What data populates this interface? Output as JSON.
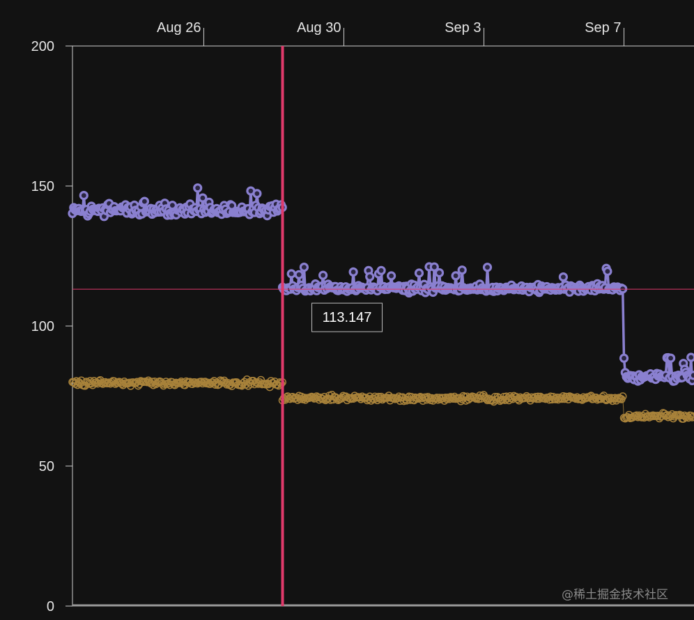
{
  "chart_data": {
    "type": "scatter",
    "title": "",
    "xlabel": "",
    "ylabel": "",
    "ylim": [
      0,
      200
    ],
    "xlim": [
      "2025-08-22T06:00",
      "2025-09-09T00:00"
    ],
    "y_ticks": [
      0,
      50,
      100,
      150,
      200
    ],
    "x_ticks": [
      {
        "label": "Aug 26",
        "date": "2025-08-26"
      },
      {
        "label": "Aug 30",
        "date": "2025-08-30"
      },
      {
        "label": "Sep 3",
        "date": "2025-09-03"
      },
      {
        "label": "Sep 7",
        "date": "2025-09-07"
      }
    ],
    "x_axis_position": "top",
    "grid": false,
    "series": [
      {
        "color": "#8a80d0",
        "style": "line-with-markers",
        "segments": [
          {
            "start": "2025-08-22T06:00",
            "end": "2025-08-28T06:00",
            "mean": 141.5,
            "jitter": 2.2,
            "spike_chance": 0.06
          },
          {
            "start": "2025-08-28T06:00",
            "end": "2025-09-07T00:00",
            "mean": 113.5,
            "jitter": 1.3,
            "spike_chance": 0.08
          },
          {
            "start": "2025-09-07T00:00",
            "end": "2025-09-09T00:00",
            "mean": 82.0,
            "jitter": 2.0,
            "spike_chance": 0.05
          }
        ]
      },
      {
        "color": "#a8823a",
        "style": "markers",
        "segments": [
          {
            "start": "2025-08-22T06:00",
            "end": "2025-08-28T06:00",
            "mean": 79.6,
            "jitter": 1.0
          },
          {
            "start": "2025-08-28T06:00",
            "end": "2025-09-07T00:00",
            "mean": 74.2,
            "jitter": 0.9
          },
          {
            "start": "2025-09-07T00:00",
            "end": "2025-09-09T00:00",
            "mean": 67.8,
            "jitter": 0.9
          }
        ]
      }
    ],
    "cursor": {
      "x": "2025-08-28T06:00",
      "y": 113.147,
      "label": "113.147",
      "color": "#e03a6b"
    }
  },
  "watermark": "@稀土掘金技术社区"
}
